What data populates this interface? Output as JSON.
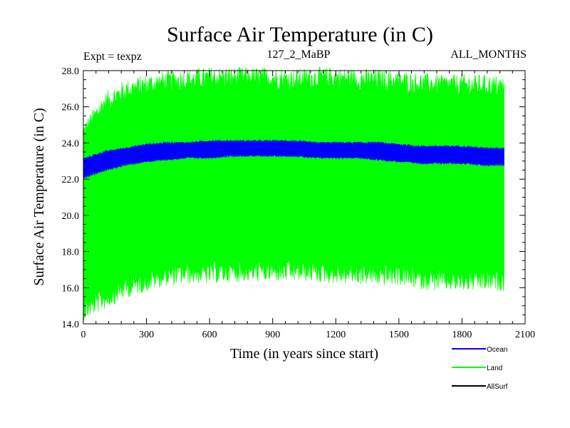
{
  "chart_data": {
    "type": "line",
    "title": "Surface Air Temperature (in C)",
    "subtitle_left": "Expt = texpz",
    "subtitle_center": "127_2_MaBP",
    "subtitle_right": "ALL_MONTHS",
    "xlabel": "Time (in years since start)",
    "ylabel": "Surface Air Temperature (in C)",
    "xlim": [
      0,
      2100
    ],
    "ylim": [
      14,
      28
    ],
    "x_ticks": [
      0,
      300,
      600,
      900,
      1200,
      1500,
      1800,
      2100
    ],
    "x_tick_labels": [
      "0",
      "300",
      "600",
      "900",
      "1200",
      "1500",
      "1800",
      "2100"
    ],
    "y_ticks": [
      14,
      16,
      18,
      20,
      22,
      24,
      26,
      28
    ],
    "y_tick_labels": [
      "14.0",
      "16.0",
      "18.0",
      "20.0",
      "22.0",
      "24.0",
      "26.0",
      "28.0"
    ],
    "grid": false,
    "legend_position": "bottom-right",
    "x_end": 2000,
    "series": [
      {
        "name": "Land",
        "color": "#00ff00",
        "envelope_x": [
          0,
          100,
          200,
          300,
          400,
          500,
          600,
          700,
          800,
          900,
          1000,
          1100,
          1200,
          1300,
          1400,
          1500,
          1600,
          1700,
          1800,
          1900,
          2000
        ],
        "envelope_upper": [
          24.4,
          26.0,
          26.7,
          27.0,
          27.2,
          27.3,
          27.4,
          27.4,
          27.4,
          27.4,
          27.3,
          27.4,
          27.4,
          27.3,
          27.3,
          27.2,
          27.1,
          27.0,
          27.0,
          27.0,
          26.9
        ],
        "envelope_lower": [
          14.9,
          15.6,
          16.2,
          16.6,
          16.9,
          17.0,
          17.0,
          17.1,
          17.1,
          17.1,
          17.1,
          17.1,
          17.0,
          17.0,
          16.9,
          16.9,
          16.7,
          16.6,
          16.6,
          16.6,
          16.6
        ]
      },
      {
        "name": "Ocean",
        "color": "#0000ff",
        "envelope_x": [
          0,
          100,
          200,
          300,
          400,
          500,
          600,
          700,
          800,
          900,
          1000,
          1100,
          1200,
          1300,
          1400,
          1500,
          1600,
          1700,
          1800,
          1900,
          2000
        ],
        "envelope_upper": [
          23.1,
          23.5,
          23.7,
          23.9,
          24.0,
          24.0,
          24.1,
          24.1,
          24.1,
          24.1,
          24.1,
          24.0,
          24.0,
          24.0,
          24.0,
          23.9,
          23.8,
          23.8,
          23.8,
          23.7,
          23.7
        ],
        "envelope_lower": [
          22.1,
          22.5,
          22.8,
          23.0,
          23.1,
          23.2,
          23.2,
          23.3,
          23.3,
          23.3,
          23.3,
          23.2,
          23.2,
          23.2,
          23.1,
          23.0,
          22.9,
          22.9,
          22.9,
          22.8,
          22.8
        ]
      },
      {
        "name": "AllSurf",
        "color": "#000000"
      }
    ]
  }
}
